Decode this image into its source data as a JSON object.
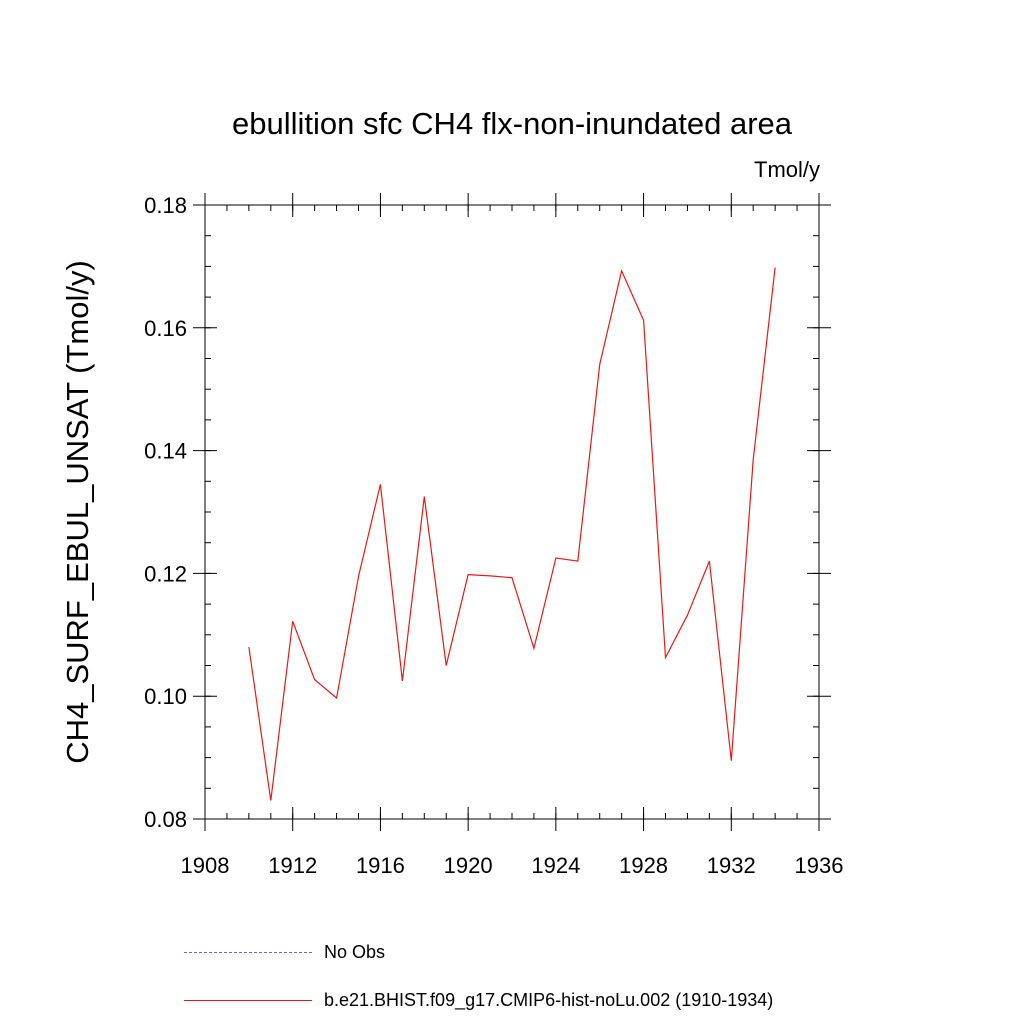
{
  "chart_data": {
    "type": "line",
    "title": "ebullition sfc CH4 flx-non-inundated area",
    "units_label": "Tmol/y",
    "ylabel": "CH4_SURF_EBUL_UNSAT  (Tmol/y)",
    "xlabel": "",
    "xlim": [
      1908,
      1936
    ],
    "ylim": [
      0.08,
      0.18
    ],
    "xticks": [
      1908,
      1912,
      1916,
      1920,
      1924,
      1928,
      1932,
      1936
    ],
    "yticks": [
      "0.08",
      "0.10",
      "0.12",
      "0.14",
      "0.16",
      "0.18"
    ],
    "x_minor_step": 1,
    "y_minor_step": 0.005,
    "grid": false,
    "legend_position": "bottom",
    "series": [
      {
        "name": "b.e21.BHIST.f09_g17.CMIP6-hist-noLu.002 (1910-1934)",
        "color": "#e31a1c",
        "style": "solid",
        "x": [
          1910,
          1911,
          1912,
          1913,
          1914,
          1915,
          1916,
          1917,
          1918,
          1919,
          1920,
          1921,
          1922,
          1923,
          1924,
          1925,
          1926,
          1927,
          1928,
          1929,
          1930,
          1931,
          1932,
          1933,
          1934
        ],
        "values": [
          0.108,
          0.083,
          0.1122,
          0.1027,
          0.0997,
          0.1195,
          0.1345,
          0.1025,
          0.1325,
          0.105,
          0.1198,
          0.1196,
          0.1193,
          0.1078,
          0.1225,
          0.122,
          0.154,
          0.1693,
          0.1612,
          0.1063,
          0.1132,
          0.122,
          0.0895,
          0.1385,
          0.1698
        ]
      }
    ],
    "legend": [
      {
        "label": "No Obs",
        "color": "#6a6acd",
        "style": "dashed"
      },
      {
        "label": "b.e21.BHIST.f09_g17.CMIP6-hist-noLu.002 (1910-1934)",
        "color": "#e31a1c",
        "style": "solid"
      }
    ]
  }
}
